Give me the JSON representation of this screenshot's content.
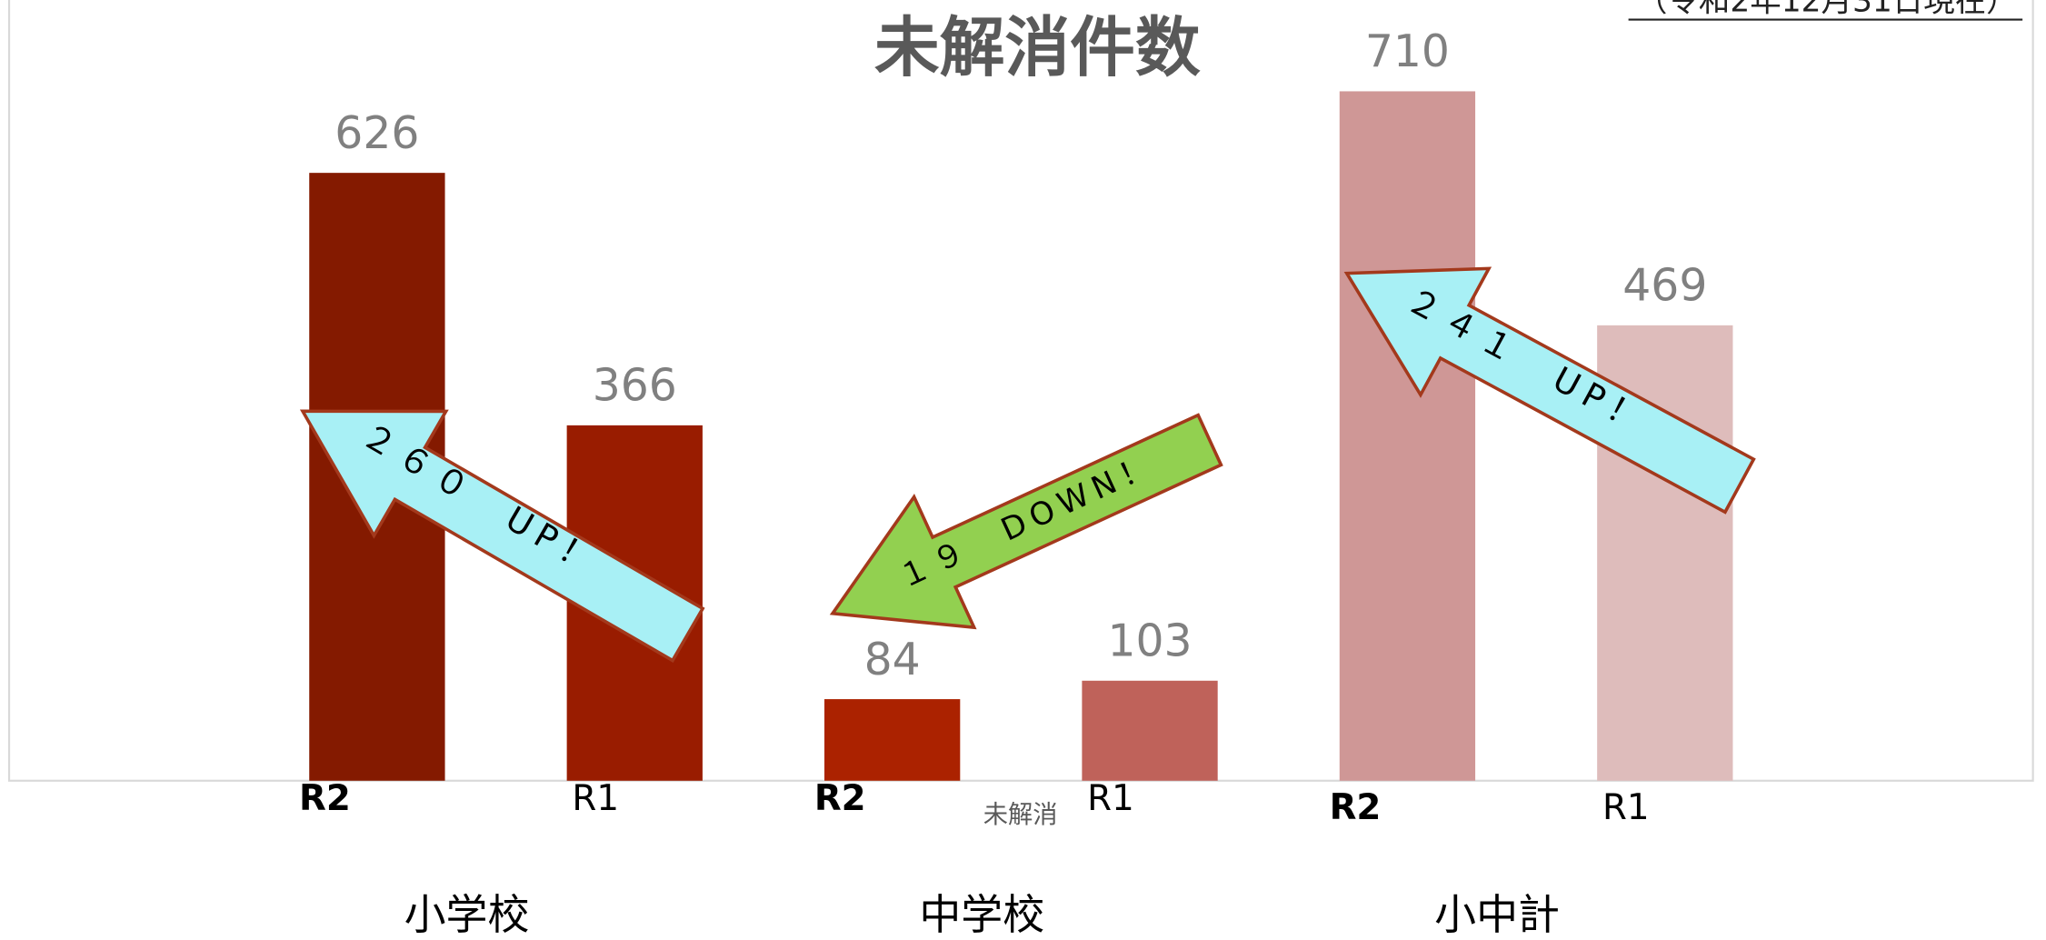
{
  "chart_data": {
    "type": "bar",
    "title": "未解消件数",
    "note": "（令和2年12月31日現在）",
    "series_label": "未解消",
    "categories": [
      "R2",
      "R1",
      "R2",
      "R1",
      "R2",
      "R1"
    ],
    "groups": [
      "小学校",
      "中学校",
      "小中計"
    ],
    "values": [
      626,
      366,
      84,
      103,
      710,
      469
    ],
    "colors": [
      "#841a00",
      "#991c00",
      "#ab2200",
      "#bf625a",
      "#cf9796",
      "#debcbb"
    ],
    "bold_categories": [
      true,
      false,
      true,
      false,
      true,
      false
    ],
    "ylim": [
      0,
      800
    ],
    "annotations": [
      "２６０　UP！",
      "１９　DOWN！",
      "２４１　UP！"
    ]
  }
}
